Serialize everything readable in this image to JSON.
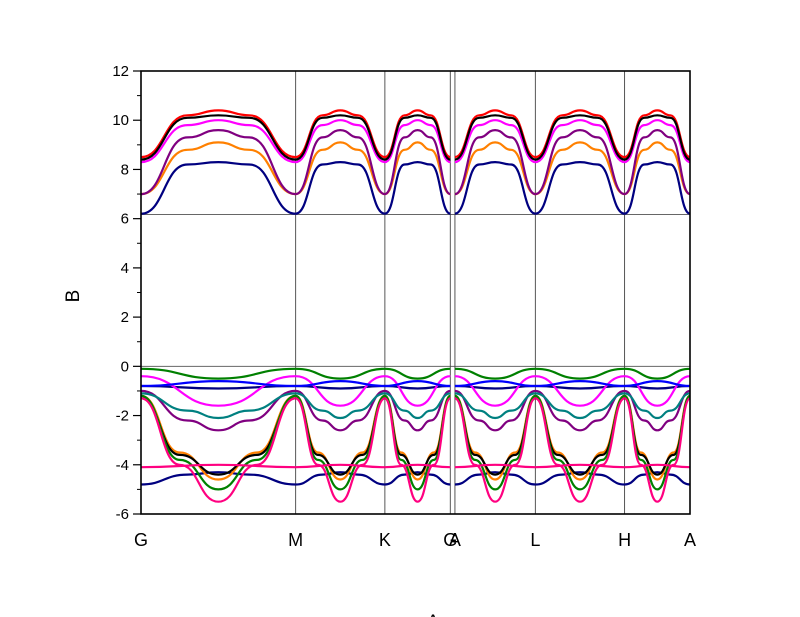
{
  "chart_data": {
    "type": "line",
    "title": "",
    "xlabel": "A",
    "ylabel": "B",
    "ylim": [
      -6,
      12
    ],
    "yticks": [
      "-6",
      "-4",
      "-2",
      "0",
      "2",
      "4",
      "6",
      "8",
      "10",
      "12"
    ],
    "reference_lines_y": [
      0,
      6.17
    ],
    "kpoints": [
      {
        "label": "G",
        "x": 0
      },
      {
        "label": "M",
        "x": 1.0
      },
      {
        "label": "K",
        "x": 1.577
      },
      {
        "label": "G",
        "x": 2.0
      },
      {
        "label": "A",
        "x": 2.03
      },
      {
        "label": "L",
        "x": 2.55
      },
      {
        "label": "H",
        "x": 3.127
      },
      {
        "label": "A",
        "x": 3.55
      }
    ],
    "segments": [
      [
        0,
        1
      ],
      [
        1,
        1.577
      ],
      [
        1.577,
        2.0
      ],
      [
        2.03,
        2.55
      ],
      [
        2.55,
        3.127
      ],
      [
        3.127,
        3.55
      ]
    ],
    "series": [
      {
        "color": "#000080",
        "values": [
          [
            [
              0,
              6.2
            ],
            [
              0.3,
              8.2
            ],
            [
              0.5,
              8.3
            ],
            [
              0.7,
              8.2
            ],
            [
              1,
              6.2
            ]
          ],
          [
            [
              0,
              -4.8
            ],
            [
              0.3,
              -4.4
            ],
            [
              0.5,
              -4.3
            ],
            [
              0.7,
              -4.4
            ],
            [
              1,
              -4.8
            ]
          ],
          [
            [
              0,
              -0.8
            ],
            [
              0.5,
              -0.9
            ],
            [
              1,
              -0.8
            ]
          ]
        ]
      },
      {
        "color": "#ff8000",
        "values": [
          [
            [
              0,
              7.0
            ],
            [
              0.3,
              8.8
            ],
            [
              0.5,
              9.1
            ],
            [
              0.7,
              8.8
            ],
            [
              1,
              7.0
            ]
          ],
          [
            [
              0,
              -1.2
            ],
            [
              0.25,
              -3.5
            ],
            [
              0.5,
              -4.6
            ],
            [
              0.75,
              -3.5
            ],
            [
              1,
              -1.2
            ]
          ]
        ]
      },
      {
        "color": "#800080",
        "values": [
          [
            [
              0,
              7.0
            ],
            [
              0.3,
              9.3
            ],
            [
              0.5,
              9.6
            ],
            [
              0.7,
              9.3
            ],
            [
              1,
              7.0
            ]
          ],
          [
            [
              0,
              -1.0
            ],
            [
              0.3,
              -2.2
            ],
            [
              0.5,
              -2.6
            ],
            [
              0.7,
              -2.2
            ],
            [
              1,
              -1.0
            ]
          ]
        ]
      },
      {
        "color": "#ff00ff",
        "values": [
          [
            [
              0,
              8.3
            ],
            [
              0.3,
              9.8
            ],
            [
              0.5,
              10.0
            ],
            [
              0.7,
              9.8
            ],
            [
              1,
              8.3
            ]
          ],
          [
            [
              0,
              -0.4
            ],
            [
              0.5,
              -1.6
            ],
            [
              1,
              -0.4
            ]
          ]
        ]
      },
      {
        "color": "#ff0000",
        "values": [
          [
            [
              0,
              8.5
            ],
            [
              0.3,
              10.2
            ],
            [
              0.5,
              10.4
            ],
            [
              0.7,
              10.2
            ],
            [
              1,
              8.5
            ]
          ]
        ]
      },
      {
        "color": "#000000",
        "values": [
          [
            [
              0,
              8.4
            ],
            [
              0.3,
              10.1
            ],
            [
              0.5,
              10.2
            ],
            [
              0.7,
              10.1
            ],
            [
              1,
              8.4
            ]
          ],
          [
            [
              0,
              -1.3
            ],
            [
              0.25,
              -3.6
            ],
            [
              0.5,
              -4.4
            ],
            [
              0.75,
              -3.6
            ],
            [
              1,
              -1.3
            ]
          ]
        ]
      },
      {
        "color": "#008000",
        "values": [
          [
            [
              0,
              -0.1
            ],
            [
              0.5,
              -0.5
            ],
            [
              1,
              -0.1
            ]
          ],
          [
            [
              0,
              -1.2
            ],
            [
              0.25,
              -3.8
            ],
            [
              0.5,
              -5.0
            ],
            [
              0.75,
              -3.8
            ],
            [
              1,
              -1.2
            ]
          ]
        ]
      },
      {
        "color": "#ff0080",
        "values": [
          [
            [
              0,
              -4.1
            ],
            [
              0.5,
              -4.0
            ],
            [
              1,
              -4.1
            ]
          ],
          [
            [
              0,
              -1.3
            ],
            [
              0.25,
              -4.0
            ],
            [
              0.5,
              -5.5
            ],
            [
              0.75,
              -4.0
            ],
            [
              1,
              -1.3
            ]
          ]
        ]
      },
      {
        "color": "#0000ff",
        "values": [
          [
            [
              0,
              -0.8
            ],
            [
              0.5,
              -0.6
            ],
            [
              1,
              -0.8
            ]
          ]
        ]
      },
      {
        "color": "#008080",
        "values": [
          [
            [
              0,
              -1.1
            ],
            [
              0.3,
              -1.8
            ],
            [
              0.5,
              -2.1
            ],
            [
              0.7,
              -1.8
            ],
            [
              1,
              -1.1
            ]
          ]
        ]
      }
    ]
  }
}
